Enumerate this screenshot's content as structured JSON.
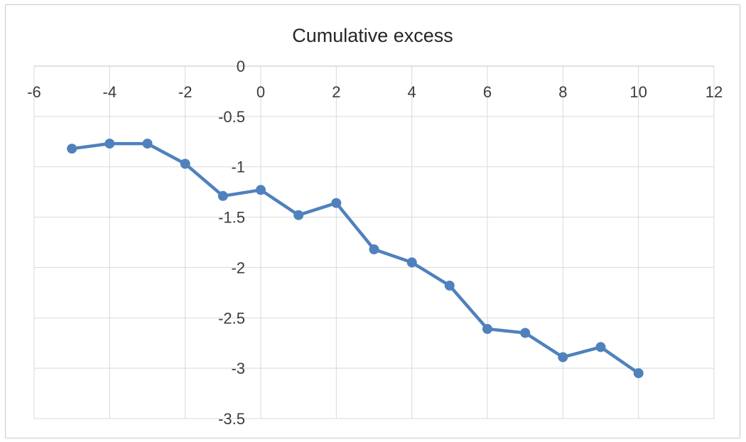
{
  "window": {
    "background_color": "#ffffff",
    "frame_border_color": "#c9c9c9"
  },
  "chart_data": {
    "type": "line",
    "title": "Cumulative excess",
    "x": [
      -5,
      -4,
      -3,
      -2,
      -1,
      0,
      1,
      2,
      3,
      4,
      5,
      6,
      7,
      8,
      9,
      10
    ],
    "y": [
      -0.82,
      -0.77,
      -0.77,
      -0.97,
      -1.29,
      -1.23,
      -1.48,
      -1.36,
      -1.82,
      -1.95,
      -2.18,
      -2.61,
      -2.65,
      -2.89,
      -2.79,
      -3.05
    ],
    "xlabel": "",
    "ylabel": "",
    "xlim": [
      -6,
      12
    ],
    "ylim": [
      -3.5,
      0
    ],
    "xticks": [
      -6,
      -4,
      -2,
      0,
      2,
      4,
      6,
      8,
      10,
      12
    ],
    "xtick_labels": [
      "-6",
      "-4",
      "-2",
      "0",
      "2",
      "4",
      "6",
      "8",
      "10",
      "12"
    ],
    "yticks": [
      0,
      -0.5,
      -1,
      -1.5,
      -2,
      -2.5,
      -3,
      -3.5
    ],
    "ytick_labels": [
      "0",
      "-0.5",
      "-1",
      "-1.5",
      "-2",
      "-2.5",
      "-3",
      "-3.5"
    ],
    "grid": true,
    "legend": false,
    "xaxis_position": "top",
    "marker": "circle",
    "colors": {
      "series": "#4F81BD",
      "gridline": "#D9D9D9",
      "axis_line": "#C0C0C0",
      "tick_label": "#3b3b3b",
      "title": "#262626"
    }
  }
}
